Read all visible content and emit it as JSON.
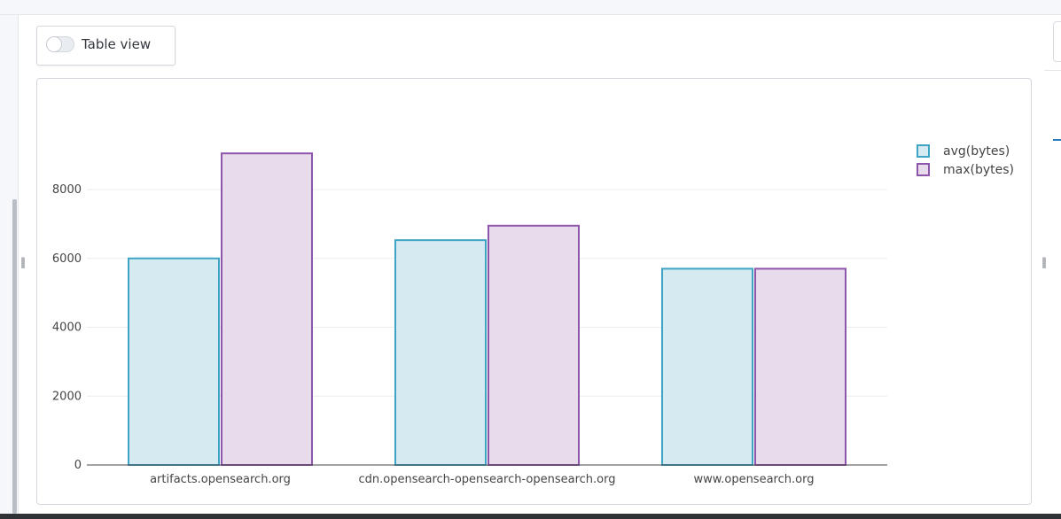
{
  "toggle": {
    "label": "Table view",
    "checked": false
  },
  "colors": {
    "avg_fill": "#d5eaf1",
    "avg_stroke": "#3ea4c5",
    "max_fill": "#e7dbec",
    "max_stroke": "#8e55ad",
    "grid": "#ececec",
    "axis": "#444444"
  },
  "chart_data": {
    "type": "bar",
    "categories": [
      "artifacts.opensearch.org",
      "cdn.opensearch-opensearch-opensearch.org",
      "www.opensearch.org"
    ],
    "series": [
      {
        "name": "avg(bytes)",
        "values": [
          6000,
          6530,
          5700
        ]
      },
      {
        "name": "max(bytes)",
        "values": [
          9050,
          6950,
          5700
        ]
      }
    ],
    "yticks": [
      0,
      2000,
      4000,
      6000,
      8000
    ],
    "ylim": [
      0,
      10500
    ],
    "grid": true,
    "legend": "top-right",
    "title": "",
    "xlabel": "",
    "ylabel": ""
  }
}
